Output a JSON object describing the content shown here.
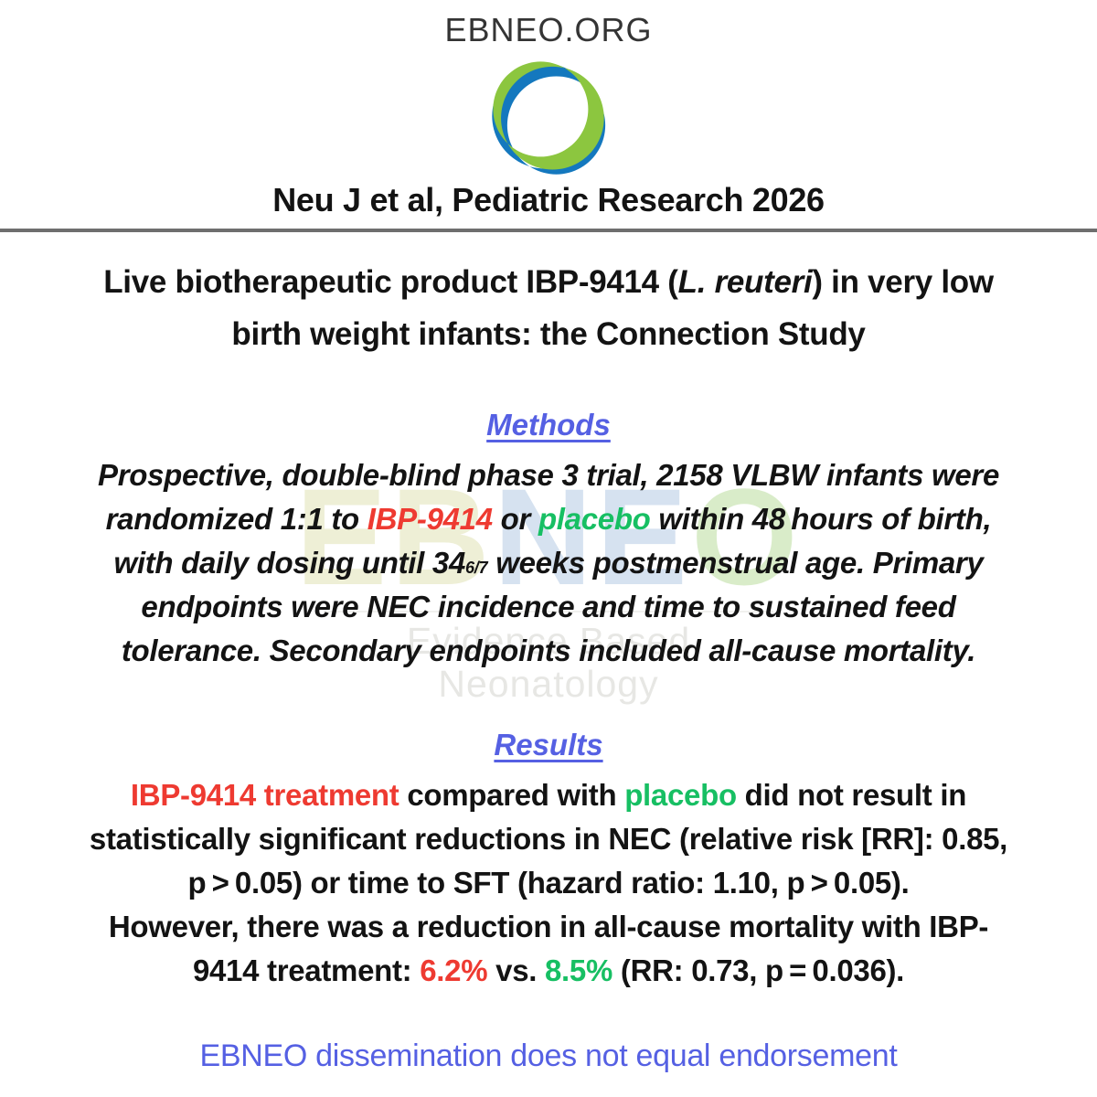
{
  "colors": {
    "red": "#ee3a31",
    "green": "#17bf63",
    "blue": "#5560e3",
    "ink": "#131313",
    "divider": "#6e6e6e",
    "logo_blue": "#1478be",
    "logo_green": "#8cc63f",
    "wm_olive": "#eeefd6",
    "wm_blue": "#d6e2f0",
    "wm_green": "#d9ecc9",
    "wm_text": "#e7e7e4"
  },
  "header": {
    "site": "EBNEO.ORG",
    "logo_icon": "ebneo-logo",
    "citation": "Neu J et al, Pediatric Research 2026"
  },
  "title": {
    "segments": [
      {
        "t": "Live biotherapeutic product IBP-9414 ("
      },
      {
        "t": "L. reuteri",
        "i": true
      },
      {
        "t": ") in very low"
      },
      {
        "br": true
      },
      {
        "t": "birth weight infants: the Connection Study"
      }
    ]
  },
  "methods": {
    "heading": "Methods",
    "segments": [
      {
        "t": "Prospective, double-blind phase 3 trial, 2158 VLBW infants were"
      },
      {
        "br": true
      },
      {
        "t": "randomized 1:1 to "
      },
      {
        "t": "IBP-9414",
        "c": "red"
      },
      {
        "t": " or "
      },
      {
        "t": "placebo",
        "c": "green"
      },
      {
        "t": " within 48 hours of birth,"
      },
      {
        "br": true
      },
      {
        "t": "with daily dosing until 34"
      },
      {
        "t": "6/7",
        "sub": true
      },
      {
        "t": " weeks postmenstrual age. Primary"
      },
      {
        "br": true
      },
      {
        "t": "endpoints were NEC incidence and time to sustained feed"
      },
      {
        "br": true
      },
      {
        "t": "tolerance. Secondary endpoints included all-cause mortality."
      }
    ]
  },
  "results": {
    "heading": "Results",
    "segments": [
      {
        "t": "IBP-9414 treatment",
        "c": "red"
      },
      {
        "t": " compared with "
      },
      {
        "t": "placebo",
        "c": "green"
      },
      {
        "t": " did not result in"
      },
      {
        "br": true
      },
      {
        "t": "statistically significant reductions in NEC (relative risk [RR]: 0.85,"
      },
      {
        "br": true
      },
      {
        "t": "p > 0.05) or time to SFT (hazard ratio: 1.10, p > 0.05)."
      },
      {
        "br": true
      },
      {
        "t": "However, there was a reduction in all-cause mortality with IBP-"
      },
      {
        "br": true
      },
      {
        "t": "9414 treatment: "
      },
      {
        "t": "6.2%",
        "c": "red"
      },
      {
        "t": " vs. "
      },
      {
        "t": "8.5%",
        "c": "green"
      },
      {
        "t": " (RR: 0.73, p = 0.036)."
      }
    ]
  },
  "watermark": {
    "letters": [
      {
        "t": "EB",
        "c": "wm_olive"
      },
      {
        "t": "NE",
        "c": "wm_blue"
      },
      {
        "t": "O",
        "c": "wm_green"
      }
    ],
    "subtitle": "Evidence Based Neonatology"
  },
  "footer": {
    "text": "EBNEO dissemination does not equal endorsement"
  }
}
